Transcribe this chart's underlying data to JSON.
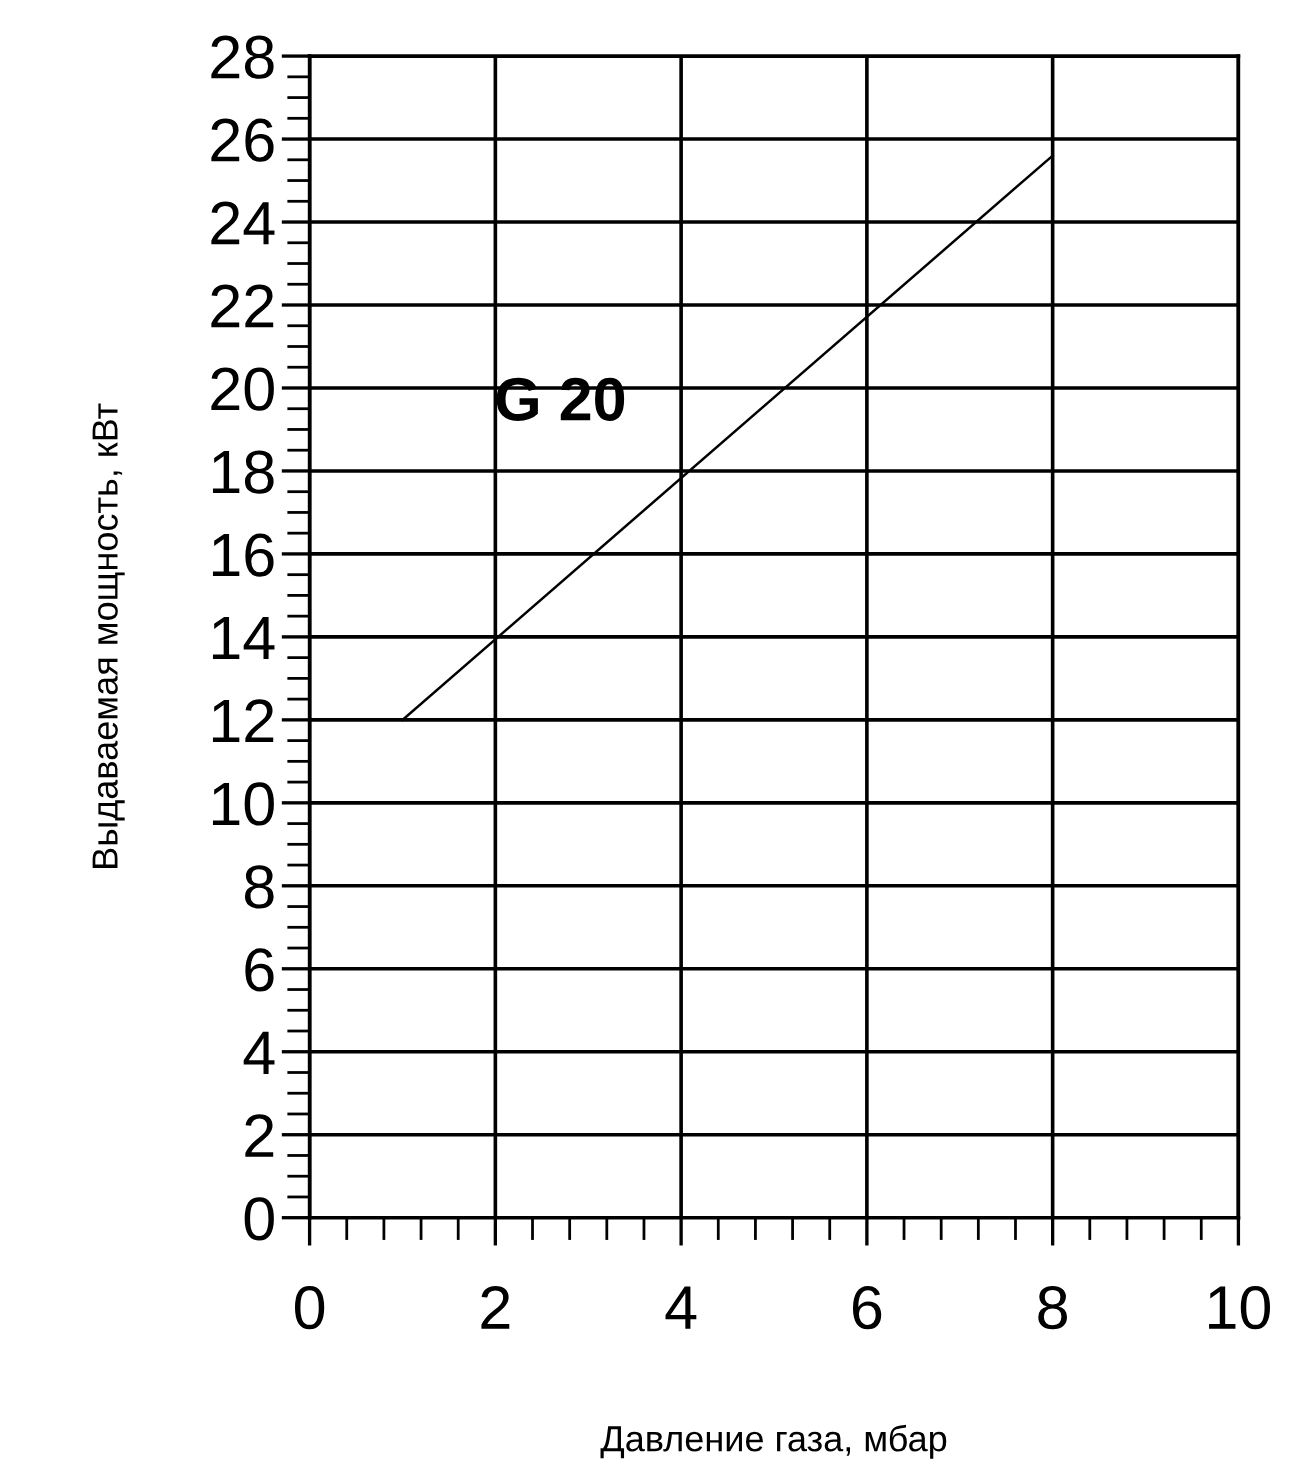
{
  "chart_data": {
    "type": "line",
    "xlabel": "Давление газа, мбар",
    "ylabel": "Выдаваемая мощность, кВт",
    "xlim": [
      0,
      10
    ],
    "xticks": [
      0,
      2,
      4,
      6,
      8,
      10
    ],
    "ylim": [
      0,
      28
    ],
    "yticks": [
      0,
      2,
      4,
      6,
      8,
      10,
      12,
      14,
      16,
      18,
      20,
      22,
      24,
      26,
      28
    ],
    "grid": true,
    "legend": false,
    "marker": "none",
    "line_style": "solid",
    "series": [
      {
        "name": "G 20",
        "color": "#000000",
        "x": [
          1,
          8
        ],
        "values": [
          12,
          25.6
        ]
      }
    ]
  }
}
